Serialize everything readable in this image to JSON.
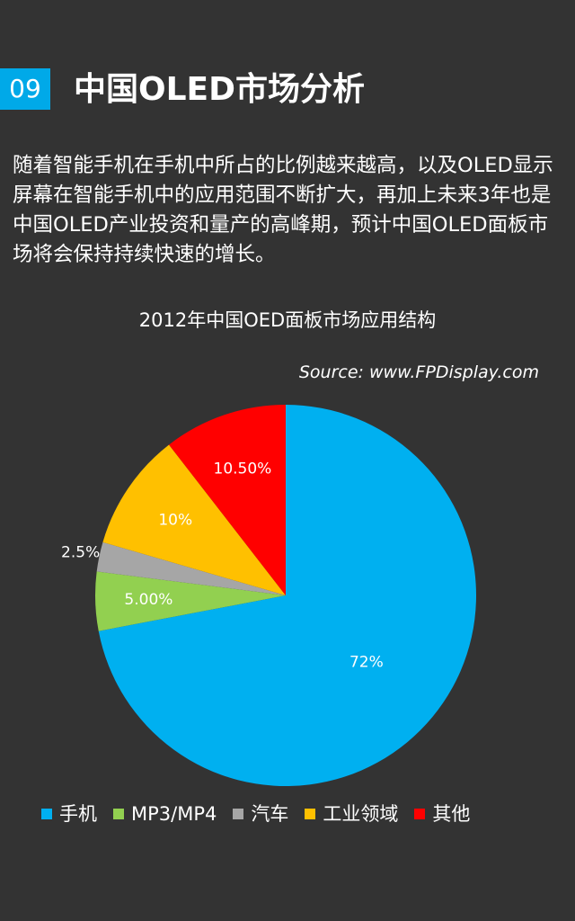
{
  "header": {
    "number": "09",
    "title": "中国OLED市场分析"
  },
  "intro_text": "随着智能手机在手机中所占的比例越来越高，以及OLED显示屏幕在智能手机中的应用范围不断扩大，再加上未来3年也是中国OLED产业投资和量产的高峰期，预计中国OLED面板市场将会保持持续快速的增长。",
  "chart_data": {
    "type": "pie",
    "title": "2012年中国OED面板市场应用结构",
    "source": "Source: www.FPDisplay.com",
    "categories": [
      "手机",
      "MP3/MP4",
      "汽车",
      "工业领域",
      "其他"
    ],
    "values": [
      72,
      5.0,
      2.5,
      10,
      10.5
    ],
    "data_labels": [
      "72%",
      "5.00%",
      "2.5%",
      "10%",
      "10.50%"
    ],
    "colors": [
      "#00b0f0",
      "#92d050",
      "#a6a6a6",
      "#ffc000",
      "#ff0000"
    ],
    "legend_position": "bottom"
  }
}
